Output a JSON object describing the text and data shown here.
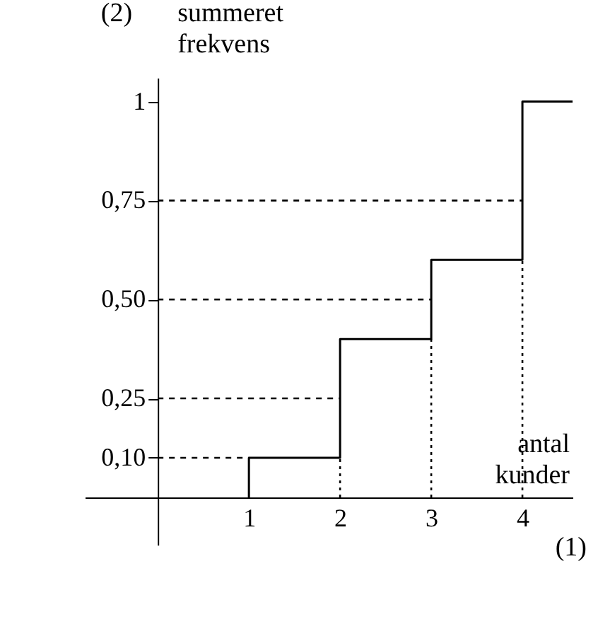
{
  "chart_data": {
    "type": "step",
    "xlabel": "antal kunder",
    "ylabel": "summeret frekvens",
    "annotations": [
      "(1)",
      "(2)"
    ],
    "x": [
      1,
      1,
      2,
      3,
      4,
      4.55
    ],
    "values": [
      0,
      0.1,
      0.4,
      0.6,
      1,
      1
    ],
    "color": "#000000",
    "line_style": "solid",
    "marker": "none",
    "grid": false,
    "xlim": [
      -0.8,
      4.55
    ],
    "ylim": [
      -0.12,
      1.06
    ],
    "xticks": [
      1,
      2,
      3,
      4
    ],
    "yticks": [
      {
        "value": 0.1,
        "label": "0,10"
      },
      {
        "value": 0.25,
        "label": "0,25"
      },
      {
        "value": 0.5,
        "label": "0,50"
      },
      {
        "value": 0.75,
        "label": "0,75"
      },
      1
    ],
    "ref_lines": [
      {
        "axis": "y",
        "value": 0.1,
        "line_style": "dashed",
        "color": "#000000"
      },
      {
        "axis": "y",
        "value": 0.25,
        "line_style": "dashed",
        "color": "#000000"
      },
      {
        "axis": "y",
        "value": 0.5,
        "line_style": "dashed",
        "color": "#000000"
      },
      {
        "axis": "y",
        "value": 0.75,
        "line_style": "dashed",
        "color": "#000000"
      },
      {
        "axis": "x",
        "value": 2,
        "line_style": "dotted",
        "color": "#000000"
      },
      {
        "axis": "x",
        "value": 3,
        "line_style": "dotted",
        "color": "#000000"
      },
      {
        "axis": "x",
        "value": 4,
        "line_style": "dotted",
        "color": "#000000"
      }
    ]
  }
}
